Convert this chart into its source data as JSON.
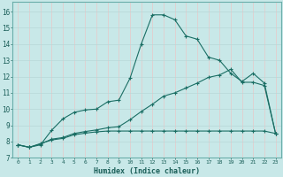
{
  "xlabel": "Humidex (Indice chaleur)",
  "bg_color": "#c8e8e8",
  "grid_color_major": "#e8c8c8",
  "grid_color_minor": "#b8d8d8",
  "line_color": "#1a6e64",
  "xlim": [
    -0.5,
    23.5
  ],
  "ylim": [
    7.0,
    16.6
  ],
  "xticks": [
    0,
    1,
    2,
    3,
    4,
    5,
    6,
    7,
    8,
    9,
    10,
    11,
    12,
    13,
    14,
    15,
    16,
    17,
    18,
    19,
    20,
    21,
    22,
    23
  ],
  "yticks": [
    7,
    8,
    9,
    10,
    11,
    12,
    13,
    14,
    15,
    16
  ],
  "series1_x": [
    0,
    1,
    2,
    3,
    4,
    5,
    6,
    7,
    8,
    9,
    10,
    11,
    12,
    13,
    14,
    15,
    16,
    17,
    18,
    19,
    20,
    21,
    22,
    23
  ],
  "series1_y": [
    7.8,
    7.65,
    7.8,
    8.7,
    9.4,
    9.8,
    9.95,
    10.0,
    10.45,
    10.55,
    11.9,
    14.0,
    15.8,
    15.8,
    15.5,
    14.5,
    14.3,
    13.2,
    13.0,
    12.2,
    11.7,
    12.2,
    11.6,
    8.5
  ],
  "series2_x": [
    0,
    1,
    2,
    3,
    4,
    5,
    6,
    7,
    8,
    9,
    10,
    11,
    12,
    13,
    14,
    15,
    16,
    17,
    18,
    19,
    20,
    21,
    22,
    23
  ],
  "series2_y": [
    7.8,
    7.65,
    7.85,
    8.15,
    8.25,
    8.5,
    8.62,
    8.72,
    8.85,
    8.92,
    9.35,
    9.85,
    10.3,
    10.8,
    11.0,
    11.3,
    11.6,
    11.95,
    12.1,
    12.45,
    11.65,
    11.65,
    11.45,
    8.5
  ],
  "series3_x": [
    0,
    1,
    2,
    3,
    4,
    5,
    6,
    7,
    8,
    9,
    10,
    11,
    12,
    13,
    14,
    15,
    16,
    17,
    18,
    19,
    20,
    21,
    22,
    23
  ],
  "series3_y": [
    7.8,
    7.65,
    7.88,
    8.1,
    8.2,
    8.42,
    8.52,
    8.6,
    8.65,
    8.65,
    8.65,
    8.65,
    8.65,
    8.65,
    8.65,
    8.65,
    8.65,
    8.65,
    8.65,
    8.65,
    8.65,
    8.65,
    8.65,
    8.5
  ]
}
